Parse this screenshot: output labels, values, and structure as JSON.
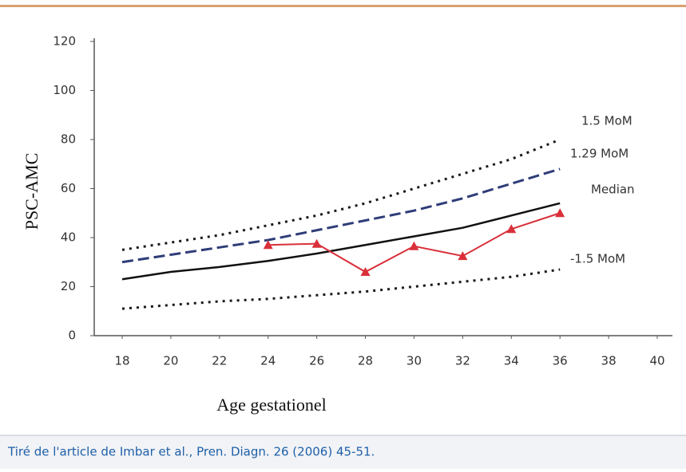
{
  "chart_data": {
    "type": "line",
    "xlabel": "Age gestationel",
    "ylabel": "PSC-AMC",
    "xlim": [
      18,
      40
    ],
    "xticks": [
      18,
      20,
      22,
      24,
      26,
      28,
      30,
      32,
      34,
      36,
      38,
      40
    ],
    "ylim": [
      0,
      120
    ],
    "yticks": [
      0,
      20,
      40,
      60,
      80,
      100,
      120
    ],
    "series": [
      {
        "name": "1.5 MoM",
        "color": "#1a1a1a",
        "style": "dotted",
        "x": [
          18,
          20,
          22,
          24,
          26,
          28,
          30,
          32,
          34,
          36
        ],
        "values": [
          35,
          38,
          41,
          45,
          49,
          54,
          60,
          66,
          72,
          80
        ]
      },
      {
        "name": "1.29 MoM",
        "color": "#2f3d78",
        "style": "dashed",
        "x": [
          18,
          20,
          22,
          24,
          26,
          28,
          30,
          32,
          34,
          36
        ],
        "values": [
          30,
          33,
          36,
          39,
          43,
          47,
          51,
          56,
          62,
          68
        ]
      },
      {
        "name": "Median",
        "color": "#111111",
        "style": "solid",
        "x": [
          18,
          20,
          22,
          24,
          26,
          28,
          30,
          32,
          34,
          36
        ],
        "values": [
          23,
          26,
          28,
          30.5,
          33.5,
          37,
          40.5,
          44,
          49,
          54
        ]
      },
      {
        "name": "-1.5 MoM",
        "color": "#1a1a1a",
        "style": "dotted",
        "x": [
          18,
          20,
          22,
          24,
          26,
          28,
          30,
          32,
          34,
          36
        ],
        "values": [
          11,
          12.5,
          14,
          15,
          16.5,
          18,
          20,
          22,
          24,
          27
        ]
      },
      {
        "color": "#d9303a",
        "style": "markers",
        "x": [
          24,
          26,
          28,
          30,
          32,
          34,
          36
        ],
        "values": [
          37,
          37.5,
          26,
          36.5,
          32.5,
          43.5,
          50
        ]
      }
    ]
  },
  "caption": "Tiré de l'article de Imbar et al., Pren. Diagn. 26 (2006) 45-51."
}
